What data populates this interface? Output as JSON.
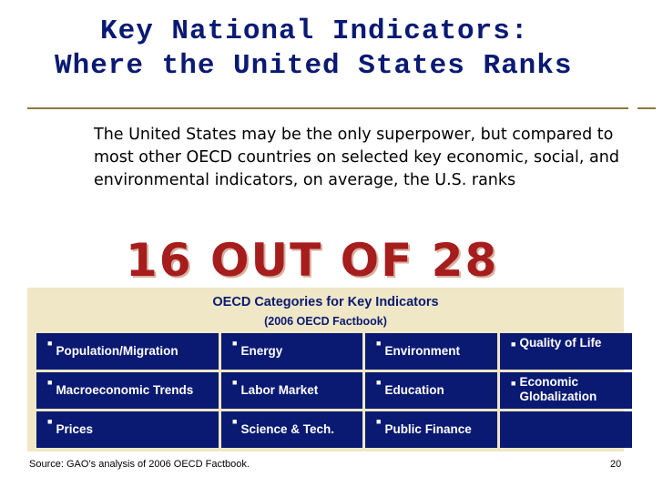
{
  "title": {
    "line1": "Key National Indicators:",
    "line2": "Where the United States Ranks"
  },
  "intro": "The United States may be the only superpower, but compared to most other OECD countries on selected key economic, social, and environmental indicators, on average, the U.S. ranks",
  "headline": "16 OUT OF 28",
  "panel": {
    "title": "OECD Categories for Key Indicators",
    "subtitle": "(2006 OECD Factbook)",
    "cells": [
      "Population/Migration",
      "Energy",
      "Environment",
      "Quality of Life",
      "Macroeconomic Trends",
      "Labor Market",
      "Education",
      "Economic Globalization",
      "Prices",
      "Science & Tech.",
      "Public Finance",
      ""
    ]
  },
  "source": "Source:  GAO’s analysis of 2006 OECD Factbook.",
  "page_number": "20",
  "colors": {
    "title": "#0a1a72",
    "headline": "#a51d1d",
    "panel_bg": "#efe7c6",
    "cell_bg": "#0a1a72"
  }
}
